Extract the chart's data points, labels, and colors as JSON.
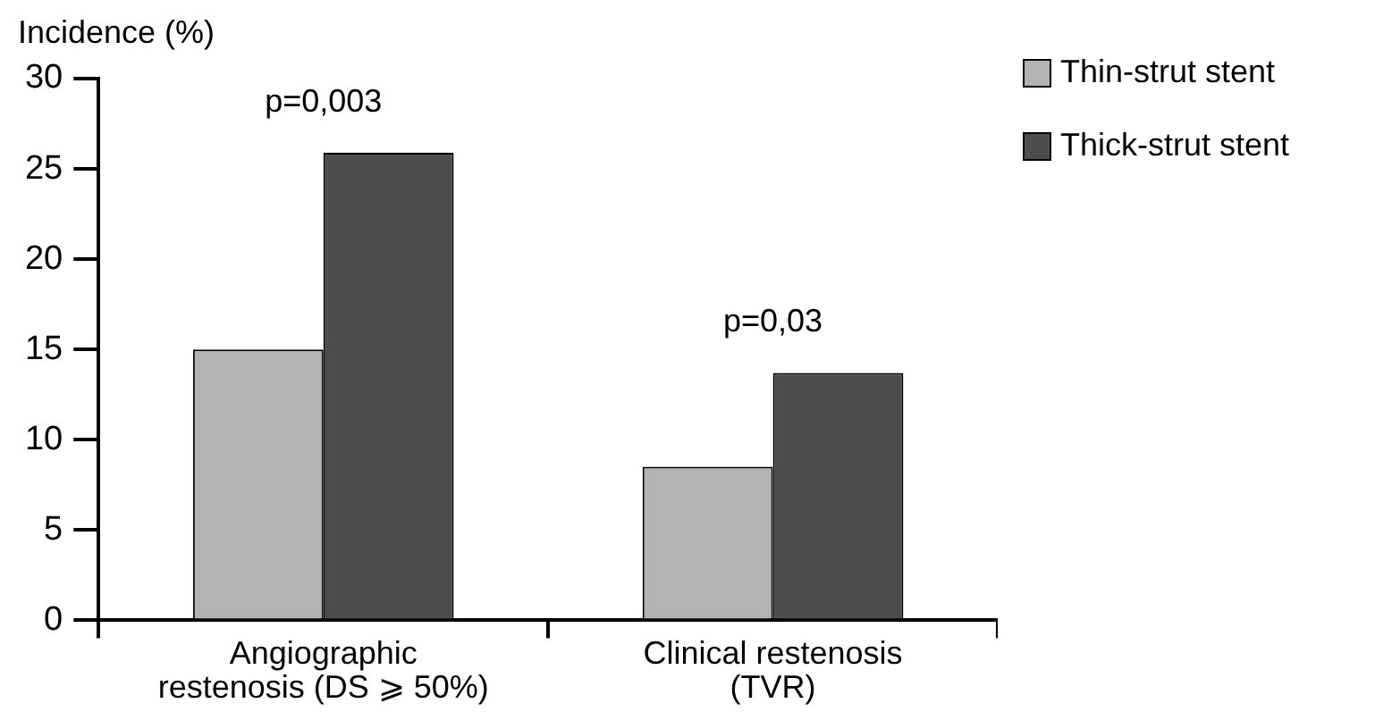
{
  "chart_data": {
    "type": "bar",
    "ylabel": "Incidence (%)",
    "categories": [
      "Angiographic\nrestenosis (DS ⩾ 50%)",
      "Clinical restenosis\n(TVR)"
    ],
    "series": [
      {
        "name": "Thin-strut stent",
        "color": "#b3b3b3",
        "values": [
          15,
          8.5
        ]
      },
      {
        "name": "Thick-strut stent",
        "color": "#4d4d4d",
        "values": [
          25.9,
          13.7
        ]
      }
    ],
    "ylim": [
      0,
      30
    ],
    "yticks": [
      0,
      5,
      10,
      15,
      20,
      25,
      30
    ],
    "grid": false,
    "legend": "top right",
    "annotations": [
      "p=0,003",
      "p=0,03"
    ]
  }
}
